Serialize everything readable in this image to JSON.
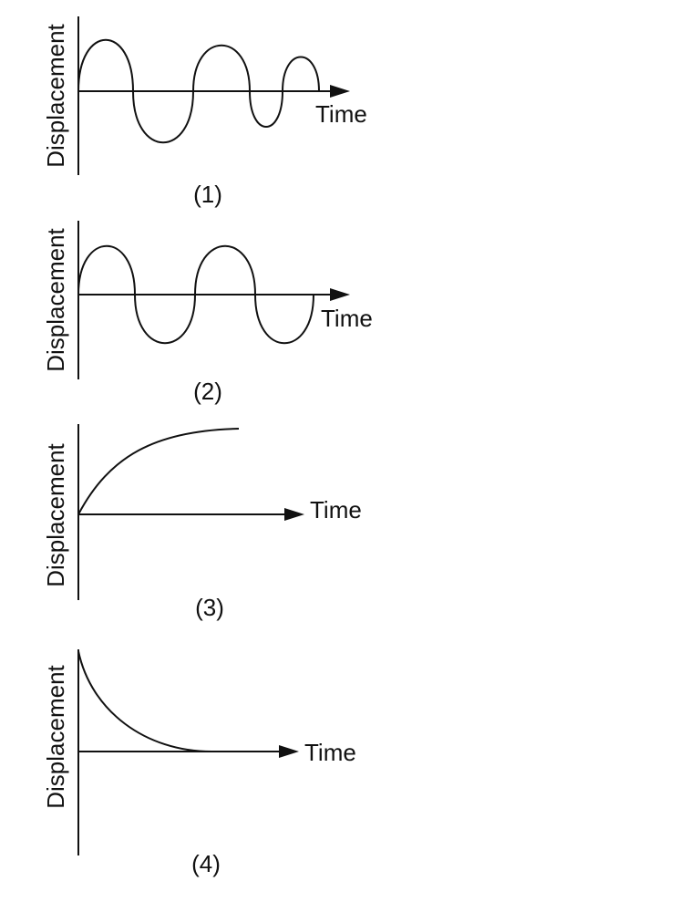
{
  "graphs": [
    {
      "caption": "(1)",
      "ylabel": "Displacement",
      "xlabel": "Time",
      "curve": "sine with decreasing period and amplitude"
    },
    {
      "caption": "(2)",
      "ylabel": "Displacement",
      "xlabel": "Time",
      "curve": "sine with constant period and amplitude"
    },
    {
      "caption": "(3)",
      "ylabel": "Displacement",
      "xlabel": "Time",
      "curve": "rising curve approaching a maximum"
    },
    {
      "caption": "(4)",
      "ylabel": "Displacement",
      "xlabel": "Time",
      "curve": "decaying curve approaching zero"
    }
  ],
  "colors": {
    "line": "#111111",
    "background": "#ffffff"
  }
}
